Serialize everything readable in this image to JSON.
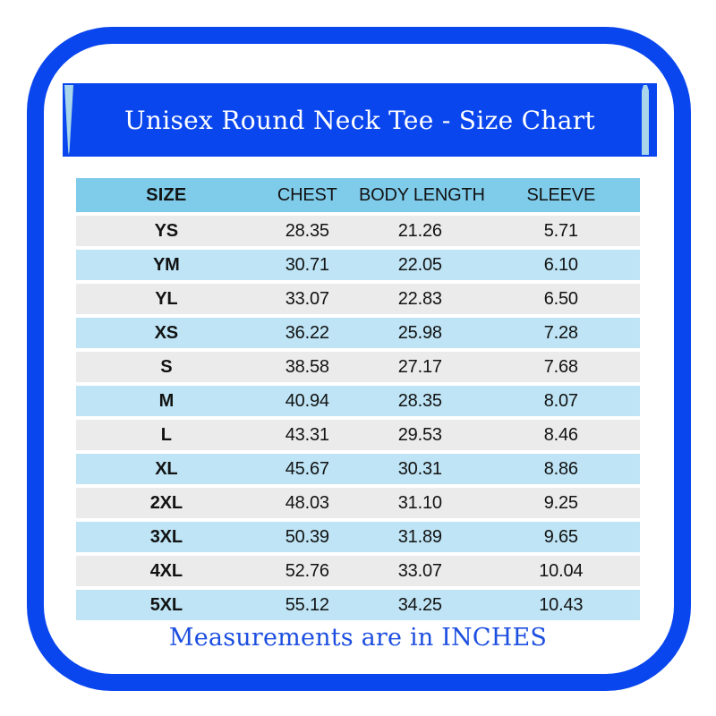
{
  "card": {
    "title": "Unisex Round Neck Tee - Size Chart",
    "note": "Measurements are in INCHES"
  },
  "colors": {
    "primary_blue": "#0a46ee",
    "accent_stripe": "#a9d6ea",
    "header_row": "#7fcbea",
    "row_gray": "#ebebeb",
    "row_blue": "#bee4f5",
    "note_text": "#1c4ee0"
  },
  "chart_data": {
    "type": "table",
    "title": "Unisex Round Neck Tee - Size Chart",
    "columns": [
      "SIZE",
      "CHEST",
      "BODY LENGTH",
      "SLEEVE"
    ],
    "units": "INCHES",
    "rows": [
      {
        "size": "YS",
        "chest": "28.35",
        "body_length": "21.26",
        "sleeve": "5.71"
      },
      {
        "size": "YM",
        "chest": "30.71",
        "body_length": "22.05",
        "sleeve": "6.10"
      },
      {
        "size": "YL",
        "chest": "33.07",
        "body_length": "22.83",
        "sleeve": "6.50"
      },
      {
        "size": "XS",
        "chest": "36.22",
        "body_length": "25.98",
        "sleeve": "7.28"
      },
      {
        "size": "S",
        "chest": "38.58",
        "body_length": "27.17",
        "sleeve": "7.68"
      },
      {
        "size": "M",
        "chest": "40.94",
        "body_length": "28.35",
        "sleeve": "8.07"
      },
      {
        "size": "L",
        "chest": "43.31",
        "body_length": "29.53",
        "sleeve": "8.46"
      },
      {
        "size": "XL",
        "chest": "45.67",
        "body_length": "30.31",
        "sleeve": "8.86"
      },
      {
        "size": "2XL",
        "chest": "48.03",
        "body_length": "31.10",
        "sleeve": "9.25"
      },
      {
        "size": "3XL",
        "chest": "50.39",
        "body_length": "31.89",
        "sleeve": "9.65"
      },
      {
        "size": "4XL",
        "chest": "52.76",
        "body_length": "33.07",
        "sleeve": "10.04"
      },
      {
        "size": "5XL",
        "chest": "55.12",
        "body_length": "34.25",
        "sleeve": "10.43"
      }
    ],
    "note": "Measurements are in INCHES"
  }
}
